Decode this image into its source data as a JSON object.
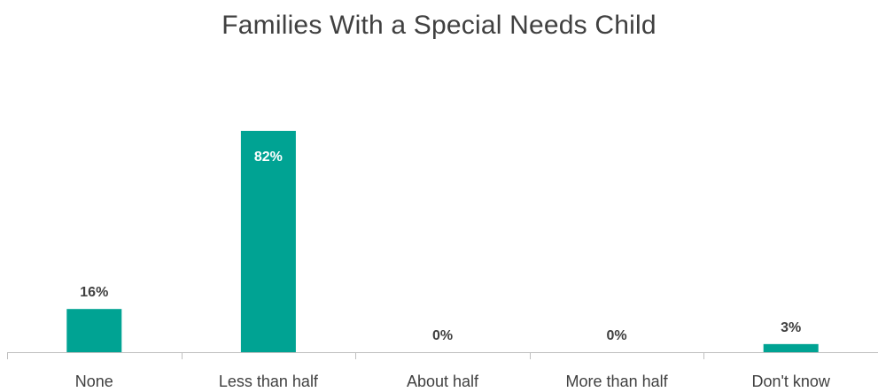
{
  "chart_data": {
    "type": "bar",
    "title": "Families With a Special Needs Child",
    "categories": [
      "None",
      "Less than half",
      "About half",
      "More than half",
      "Don't know"
    ],
    "values": [
      16,
      82,
      0,
      0,
      3
    ],
    "value_labels": [
      "16%",
      "82%",
      "0%",
      "0%",
      "3%"
    ],
    "ylim": [
      0,
      100
    ],
    "grid": false,
    "legend": "none",
    "colors": {
      "bar": "#00A393",
      "label_dark": "#404040",
      "label_inside": "#ffffff",
      "axis": "#bfbfbf"
    }
  }
}
